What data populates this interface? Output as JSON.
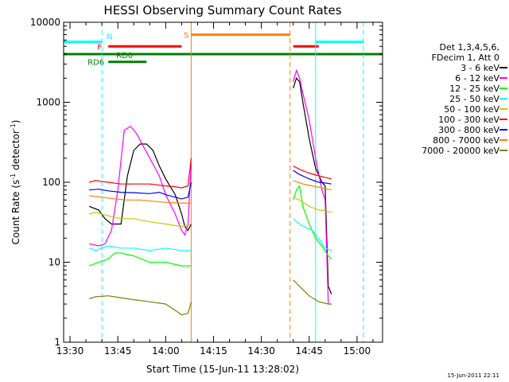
{
  "chart_data": {
    "type": "line",
    "title": "HESSI Observing Summary Count Rates",
    "xlabel": "Start Time (15-Jun-11 13:28:02)",
    "ylabel_main": "Count Rate (s",
    "ylabel_sup1": "-1",
    "ylabel_mid": " detector",
    "ylabel_sup2": "-1",
    "ylabel_end": ")",
    "y_scale": "log",
    "ylim": [
      1,
      10000
    ],
    "xlim": [
      "13:28",
      "15:08"
    ],
    "x_ticks": [
      "13:30",
      "13:45",
      "14:00",
      "14:15",
      "14:30",
      "14:45",
      "15:00"
    ],
    "y_ticks": [
      "1",
      "10",
      "100",
      "1000",
      "10000"
    ],
    "timestamp": "15-Jun-2011 22:11",
    "legend": {
      "header_line1": "Det 1,3,4,5,6,",
      "header_line2": "FDecim 1, Att 0",
      "placement": "right"
    },
    "series": [
      {
        "name": "3 - 6 keV",
        "color": "#000000",
        "x": [
          "13:36",
          "13:39",
          "13:41",
          "13:43",
          "13:46",
          "13:48",
          "13:50",
          "13:52",
          "13:54",
          "13:56",
          "13:58",
          "14:00",
          "14:03",
          "14:05",
          "14:06",
          "14:07",
          "14:08",
          "14:40",
          "14:41",
          "14:42",
          "14:43",
          "14:45",
          "14:47",
          "14:49",
          "14:50",
          "14:51",
          "14:52"
        ],
        "y": [
          50,
          45,
          35,
          30,
          30,
          120,
          250,
          300,
          300,
          250,
          160,
          110,
          70,
          40,
          28,
          25,
          30,
          1500,
          2000,
          1800,
          1000,
          350,
          150,
          100,
          90,
          5,
          4
        ]
      },
      {
        "name": "6 - 12 keV",
        "color": "#ff00ff",
        "x": [
          "13:36",
          "13:39",
          "13:41",
          "13:43",
          "13:45",
          "13:47",
          "13:49",
          "13:51",
          "13:53",
          "13:55",
          "13:58",
          "14:00",
          "14:03",
          "14:05",
          "14:06",
          "14:07",
          "14:08",
          "14:40",
          "14:41",
          "14:42",
          "14:43",
          "14:45",
          "14:47",
          "14:49",
          "14:50",
          "14:51",
          "14:52"
        ],
        "y": [
          17,
          16,
          17,
          25,
          80,
          450,
          500,
          400,
          280,
          200,
          120,
          70,
          40,
          25,
          22,
          30,
          170,
          1800,
          2500,
          2000,
          1300,
          600,
          200,
          80,
          60,
          3,
          3
        ]
      },
      {
        "name": "12 - 25 keV",
        "color": "#00ff00",
        "x": [
          "13:36",
          "13:39",
          "13:42",
          "13:44",
          "13:46",
          "13:50",
          "13:55",
          "14:00",
          "14:05",
          "14:07",
          "14:08",
          "14:40",
          "14:41",
          "14:42",
          "14:43",
          "14:45",
          "14:47",
          "14:49",
          "14:51",
          "14:52"
        ],
        "y": [
          9,
          10,
          11,
          13,
          13,
          12,
          10,
          10,
          9,
          9,
          9,
          60,
          80,
          90,
          50,
          30,
          20,
          16,
          12,
          11
        ]
      },
      {
        "name": "25 - 50 keV",
        "color": "#00ffff",
        "x": [
          "13:36",
          "13:38",
          "13:40",
          "13:42",
          "13:46",
          "13:50",
          "13:55",
          "14:00",
          "14:05",
          "14:07",
          "14:08",
          "14:40",
          "14:42",
          "14:44",
          "14:46",
          "14:48",
          "14:50",
          "14:52"
        ],
        "y": [
          15,
          14,
          15,
          16,
          15,
          15,
          14,
          15,
          14,
          14,
          14,
          35,
          30,
          27,
          25,
          20,
          15,
          14
        ]
      },
      {
        "name": "50 - 100 keV",
        "color": "#c8c800",
        "x": [
          "13:36",
          "13:38",
          "13:42",
          "13:46",
          "13:50",
          "13:55",
          "14:00",
          "14:05",
          "14:07",
          "14:08",
          "14:40",
          "14:42",
          "14:45",
          "14:48",
          "14:50",
          "14:52"
        ],
        "y": [
          40,
          42,
          38,
          35,
          35,
          32,
          30,
          28,
          29,
          30,
          65,
          60,
          50,
          45,
          44,
          42
        ]
      },
      {
        "name": "100 - 300 keV",
        "color": "#ff0000",
        "x": [
          "13:36",
          "13:38",
          "13:42",
          "13:46",
          "13:50",
          "13:55",
          "14:00",
          "14:03",
          "14:05",
          "14:07",
          "14:08",
          "14:40",
          "14:42",
          "14:45",
          "14:48",
          "14:50",
          "14:52"
        ],
        "y": [
          100,
          105,
          100,
          95,
          95,
          95,
          90,
          88,
          85,
          90,
          200,
          160,
          145,
          130,
          120,
          115,
          110
        ]
      },
      {
        "name": "300 - 800 keV",
        "color": "#0000ff",
        "x": [
          "13:36",
          "13:39",
          "13:42",
          "13:46",
          "13:50",
          "13:55",
          "13:58",
          "14:00",
          "14:03",
          "14:05",
          "14:07",
          "14:08",
          "14:40",
          "14:42",
          "14:45",
          "14:48",
          "14:50",
          "14:52"
        ],
        "y": [
          80,
          82,
          78,
          75,
          74,
          72,
          75,
          70,
          65,
          62,
          65,
          100,
          140,
          125,
          110,
          100,
          98,
          95
        ]
      },
      {
        "name": "800 - 7000 keV",
        "color": "#ff8000",
        "x": [
          "13:36",
          "13:40",
          "13:44",
          "13:48",
          "13:52",
          "13:56",
          "14:00",
          "14:04",
          "14:07",
          "14:08",
          "14:40",
          "14:43",
          "14:46",
          "14:49",
          "14:52"
        ],
        "y": [
          68,
          65,
          62,
          60,
          60,
          58,
          56,
          55,
          55,
          55,
          105,
          95,
          90,
          85,
          80
        ]
      },
      {
        "name": "7000 - 20000 keV",
        "color": "#808000",
        "x": [
          "13:36",
          "13:38",
          "13:42",
          "13:46",
          "13:50",
          "13:55",
          "14:00",
          "14:03",
          "14:05",
          "14:07",
          "14:08",
          "14:40",
          "14:42",
          "14:45",
          "14:48",
          "14:51",
          "14:52"
        ],
        "y": [
          3.5,
          3.7,
          3.8,
          3.6,
          3.4,
          3.2,
          3.0,
          2.5,
          2.2,
          2.3,
          3.2,
          6,
          5,
          3.8,
          3.2,
          3.0,
          3.0
        ]
      }
    ],
    "state_bars": [
      {
        "label": "N",
        "color": "#00ffff",
        "y": 5700,
        "segments": [
          [
            "13:28",
            "13:40"
          ],
          [
            "14:47",
            "15:02"
          ]
        ]
      },
      {
        "label": "F",
        "color": "#ff0000",
        "y": 5000,
        "segments": [
          [
            "13:42",
            "14:05"
          ],
          [
            "14:40",
            "14:48"
          ]
        ]
      },
      {
        "label": "S",
        "color": "#ff8000",
        "y": 7000,
        "segments": [
          [
            "14:08",
            "14:39"
          ]
        ]
      },
      {
        "label": "RD0",
        "color": "#008000",
        "y": 4000,
        "segments": [
          [
            "13:28",
            "15:08"
          ]
        ]
      },
      {
        "label": "RD6",
        "color": "#008000",
        "y": 3200,
        "segments": [
          [
            "13:42",
            "13:54"
          ]
        ]
      }
    ],
    "vlines": [
      {
        "time": "13:28",
        "color": "#00ffff",
        "style": "solid"
      },
      {
        "time": "13:40",
        "color": "#00ffff",
        "style": "dashed"
      },
      {
        "time": "14:47",
        "color": "#00ffff",
        "style": "solid"
      },
      {
        "time": "15:02",
        "color": "#00ffff",
        "style": "dashed"
      },
      {
        "time": "14:08",
        "color": "#ff8000",
        "style": "solid"
      },
      {
        "time": "14:39",
        "color": "#ff8000",
        "style": "dashed"
      }
    ]
  }
}
